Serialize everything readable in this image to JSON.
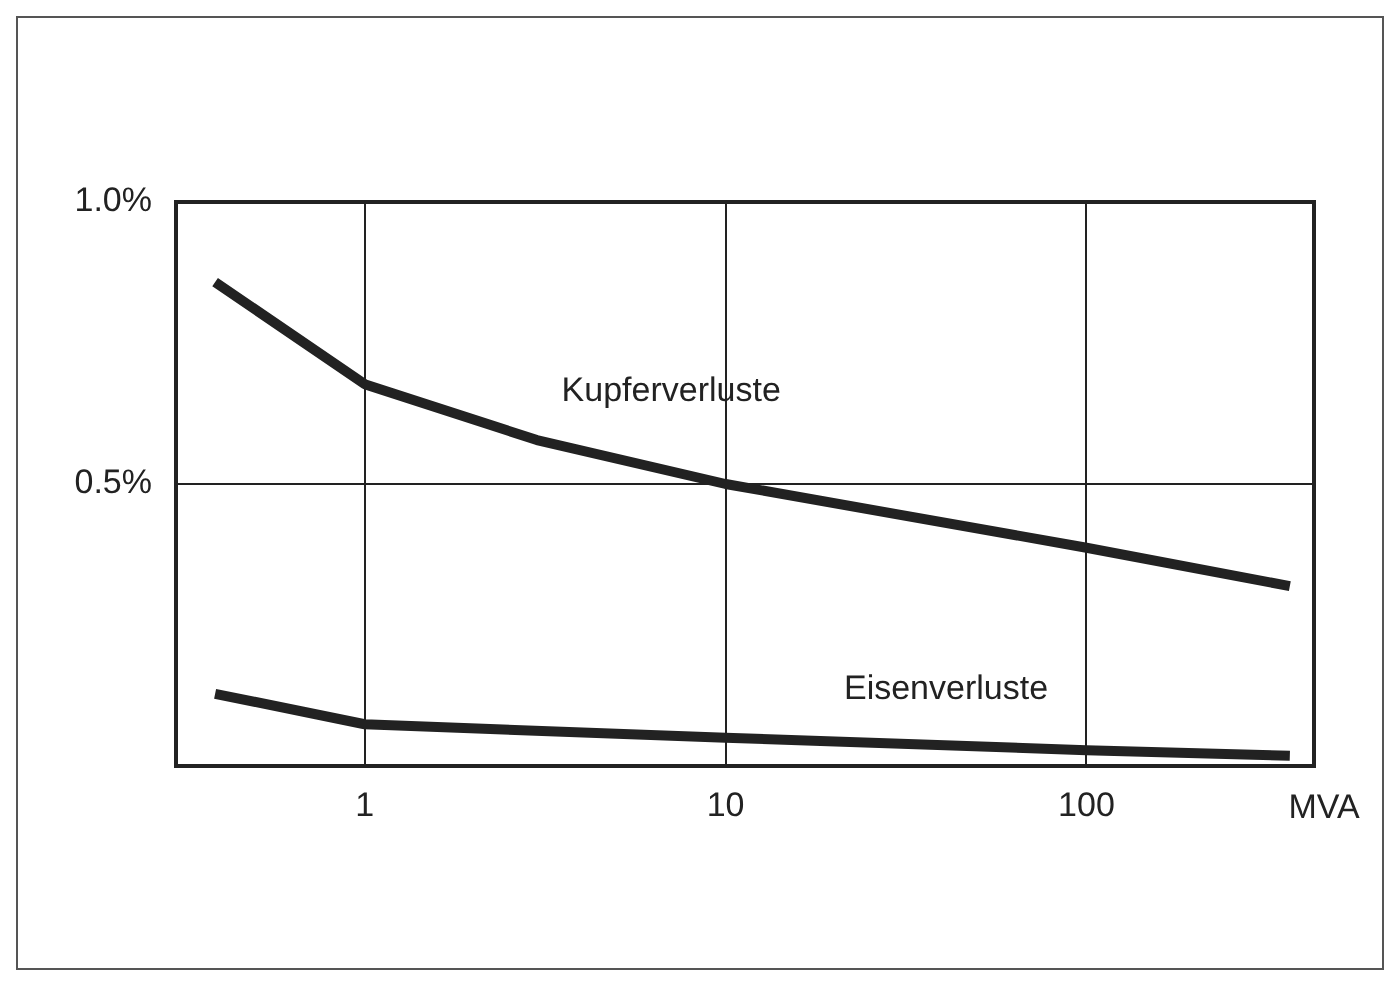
{
  "chart_data": {
    "type": "line",
    "xlabel": "MVA",
    "log": "x",
    "grid": true,
    "xlim": [
      0.306,
      427
    ],
    "xticks": [
      1,
      10,
      100
    ],
    "ylim": [
      0,
      1.0
    ],
    "yticks": [
      {
        "value": 0.5,
        "label": "0.5%"
      },
      {
        "value": 1.0,
        "label": "1.0%"
      }
    ],
    "series": [
      {
        "name": "Kupferverluste",
        "color": "#222222",
        "x": [
          0.385,
          1,
          3,
          10,
          100,
          366
        ],
        "values": [
          0.858,
          0.677,
          0.578,
          0.5,
          0.387,
          0.319
        ]
      },
      {
        "name": "Eisenverluste",
        "color": "#222222",
        "x": [
          0.385,
          1,
          10,
          100,
          366
        ],
        "values": [
          0.128,
          0.074,
          0.05,
          0.028,
          0.018
        ]
      }
    ]
  }
}
